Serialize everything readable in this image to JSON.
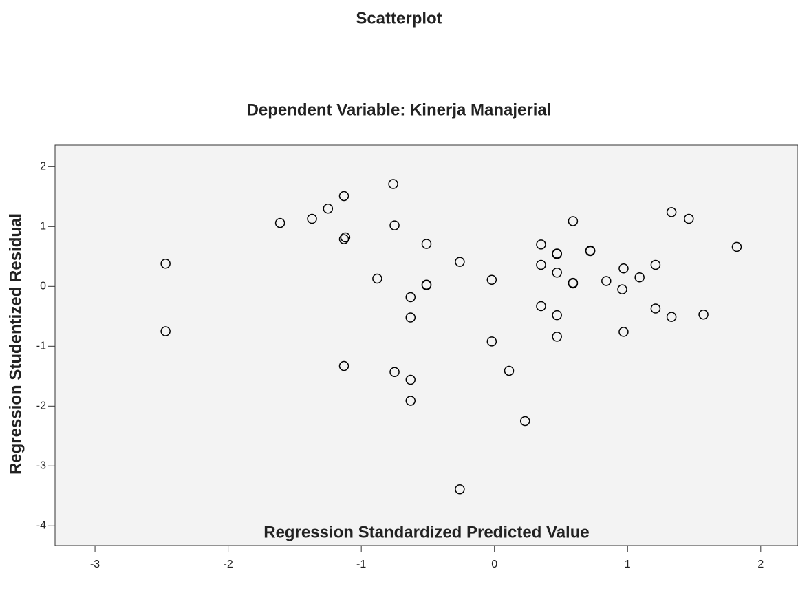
{
  "chart_data": {
    "type": "scatter",
    "title": "Scatterplot",
    "subtitle": "Dependent Variable: Kinerja Manajerial",
    "x_label": "Regression Standardized Predicted Value",
    "y_label": "Regression Studentized Residual",
    "xlim": [
      -3.3,
      2.28
    ],
    "ylim": [
      -4.33,
      2.36
    ],
    "xticks": [
      -3,
      -2,
      -1,
      0,
      1,
      2
    ],
    "yticks": [
      -4,
      -3,
      -2,
      -1,
      0,
      1,
      2
    ],
    "color": "#000000",
    "x": [
      -2.47,
      -2.47,
      -1.61,
      -1.37,
      -1.25,
      -1.13,
      -1.12,
      -1.13,
      -1.13,
      -0.76,
      -0.75,
      -0.88,
      -0.51,
      -0.51,
      -0.51,
      -0.63,
      -0.63,
      -0.75,
      -0.63,
      -0.63,
      -0.26,
      -0.26,
      -0.02,
      -0.02,
      0.11,
      0.23,
      0.35,
      0.35,
      0.35,
      0.47,
      0.47,
      0.47,
      0.47,
      0.47,
      0.59,
      0.59,
      0.59,
      0.72,
      0.72,
      0.84,
      0.97,
      0.96,
      0.97,
      1.09,
      1.21,
      1.21,
      1.33,
      1.33,
      1.46,
      1.57,
      1.82
    ],
    "values": [
      0.38,
      -0.75,
      1.06,
      1.13,
      1.3,
      1.51,
      0.82,
      0.79,
      -1.33,
      1.71,
      1.02,
      0.13,
      0.71,
      0.02,
      0.03,
      -0.18,
      -0.52,
      -1.43,
      -1.56,
      -1.91,
      0.41,
      -3.39,
      0.11,
      -0.92,
      -1.41,
      -2.25,
      0.7,
      0.36,
      -0.33,
      0.55,
      0.54,
      0.23,
      -0.48,
      -0.84,
      1.09,
      0.06,
      0.05,
      0.6,
      0.59,
      0.09,
      0.3,
      -0.05,
      -0.76,
      0.15,
      0.36,
      -0.37,
      1.24,
      -0.51,
      1.13,
      -0.47,
      0.66
    ]
  }
}
